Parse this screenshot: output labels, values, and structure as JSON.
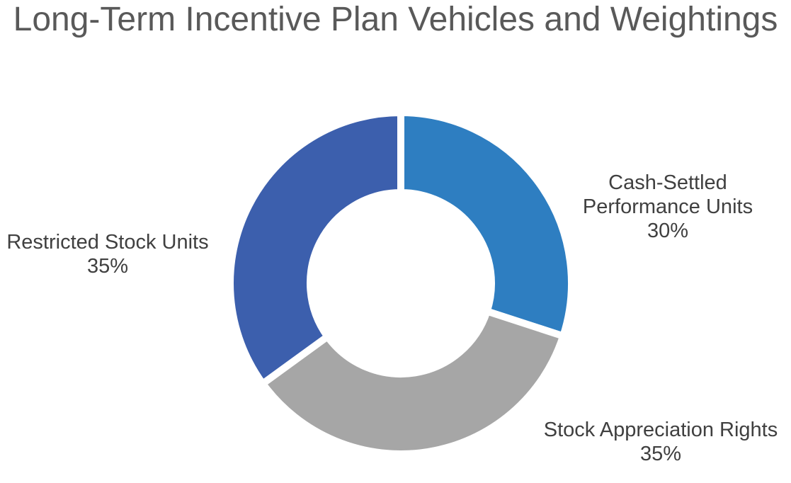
{
  "chart_data": {
    "type": "pie",
    "donut": true,
    "title": "Long-Term Incentive Plan Vehicles and Weightings",
    "categories": [
      "Cash-Settled Performance Units",
      "Stock Appreciation Rights",
      "Restricted Stock Units"
    ],
    "values": [
      30,
      35,
      35
    ],
    "value_labels": [
      "30%",
      "35%",
      "35%"
    ],
    "label_lines": [
      [
        "Cash-Settled",
        "Performance Units"
      ],
      [
        "Stock Appreciation Rights"
      ],
      [
        "Restricted Stock Units"
      ]
    ],
    "colors": [
      "#2E7EC1",
      "#A6A6A6",
      "#3C5FAD"
    ],
    "start_angle_deg": 0,
    "direction": "clockwise",
    "legend": "none"
  }
}
